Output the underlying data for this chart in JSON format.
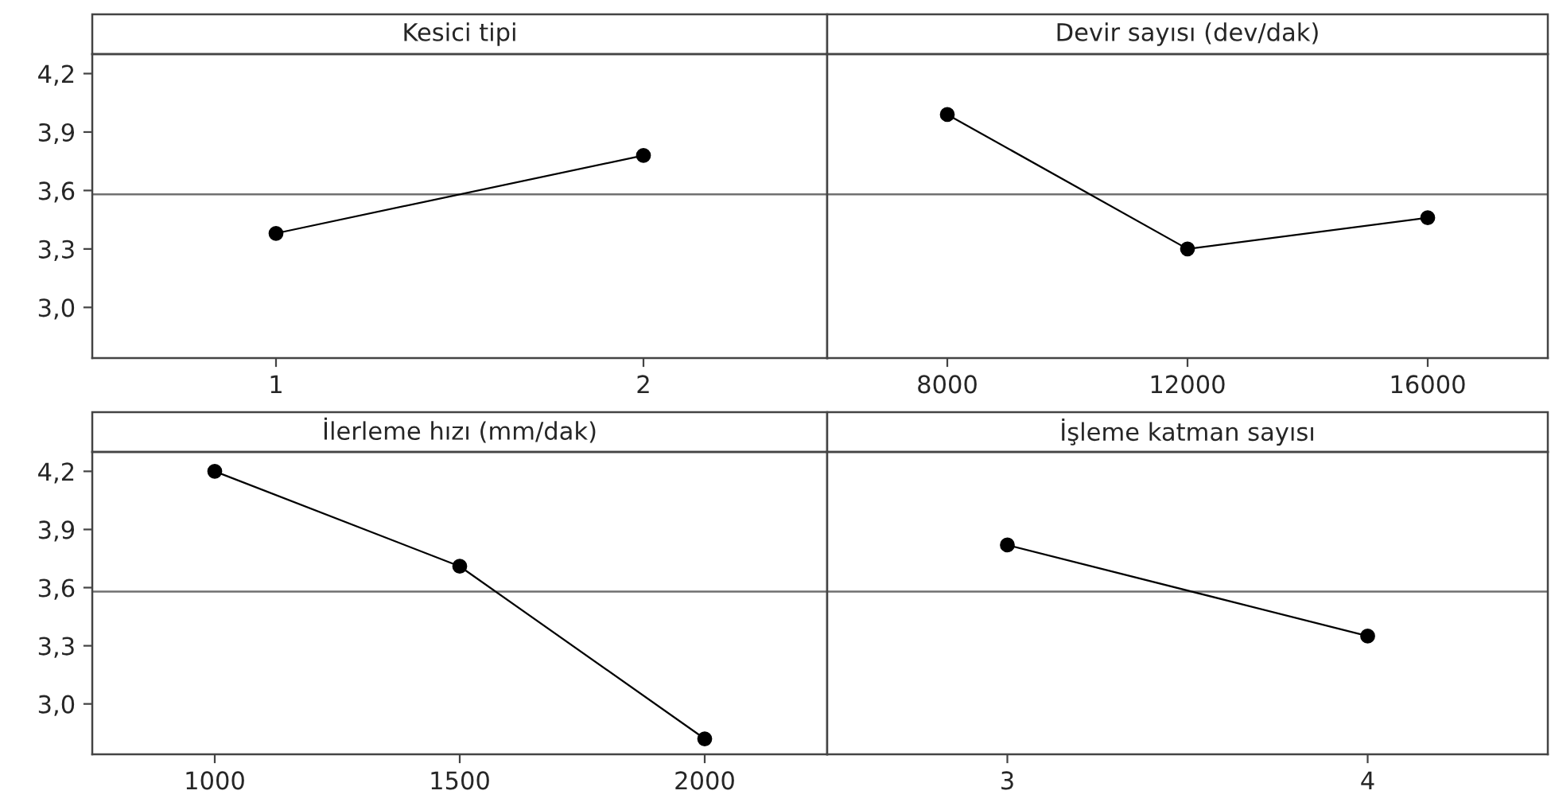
{
  "chart_data": [
    {
      "type": "line",
      "title": "Kesici tipi",
      "categories": [
        "1",
        "2"
      ],
      "values": [
        3.38,
        3.78
      ],
      "color": "#000000",
      "marker": "circle",
      "ylim": [
        2.74,
        4.3
      ],
      "yticks": [
        {
          "value": 3.0,
          "label": "3,0"
        },
        {
          "value": 3.3,
          "label": "3,3"
        },
        {
          "value": 3.6,
          "label": "3,6"
        },
        {
          "value": 3.9,
          "label": "3,9"
        },
        {
          "value": 4.2,
          "label": "4,2"
        }
      ],
      "ref_lines": [
        {
          "axis": "y",
          "value": 3.58,
          "color": "#707070"
        }
      ],
      "grid": false
    },
    {
      "type": "line",
      "title": "Devir sayısı (dev/dak)",
      "categories": [
        "8000",
        "12000",
        "16000"
      ],
      "values": [
        3.99,
        3.3,
        3.46
      ],
      "color": "#000000",
      "marker": "circle",
      "ylim": [
        2.74,
        4.3
      ],
      "tick_labels": "x",
      "ref_lines": [
        {
          "axis": "y",
          "value": 3.58,
          "color": "#707070"
        }
      ],
      "grid": false
    },
    {
      "type": "line",
      "title": "İlerleme hızı (mm/dak)",
      "categories": [
        "1000",
        "1500",
        "2000"
      ],
      "values": [
        4.2,
        3.71,
        2.82
      ],
      "color": "#000000",
      "marker": "circle",
      "ylim": [
        2.74,
        4.3
      ],
      "yticks": [
        {
          "value": 3.0,
          "label": "3,0"
        },
        {
          "value": 3.3,
          "label": "3,3"
        },
        {
          "value": 3.6,
          "label": "3,6"
        },
        {
          "value": 3.9,
          "label": "3,9"
        },
        {
          "value": 4.2,
          "label": "4,2"
        }
      ],
      "ref_lines": [
        {
          "axis": "y",
          "value": 3.58,
          "color": "#707070"
        }
      ],
      "grid": false
    },
    {
      "type": "line",
      "title": "İşleme katman sayısı",
      "categories": [
        "3",
        "4"
      ],
      "values": [
        3.82,
        3.35
      ],
      "color": "#000000",
      "marker": "circle",
      "ylim": [
        2.74,
        4.3
      ],
      "tick_labels": "x",
      "ref_lines": [
        {
          "axis": "y",
          "value": 3.58,
          "color": "#707070"
        }
      ],
      "grid": false
    }
  ]
}
